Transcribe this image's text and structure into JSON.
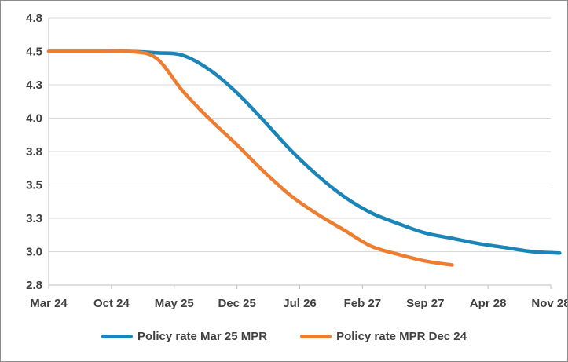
{
  "chart_data": {
    "type": "line",
    "title": "",
    "xlabel": "",
    "ylabel": "",
    "x_tick_labels": [
      "Mar 24",
      "Oct 24",
      "May 25",
      "Dec 25",
      "Jul 26",
      "Feb 27",
      "Sep 27",
      "Apr 28",
      "Nov 28"
    ],
    "y_tick_labels": [
      "2.8",
      "3.0",
      "3.3",
      "3.5",
      "3.8",
      "4.0",
      "4.3",
      "4.5",
      "4.8"
    ],
    "ylim": [
      2.75,
      4.75
    ],
    "grid": "horizontal",
    "legend_position": "bottom",
    "x_unit": "months since Mar 24",
    "series": [
      {
        "name": "Policy rate Mar 25 MPR",
        "color": "#1b85b8",
        "points": [
          [
            0,
            4.5
          ],
          [
            3,
            4.5
          ],
          [
            6,
            4.5
          ],
          [
            9,
            4.5
          ],
          [
            12,
            4.49
          ],
          [
            15,
            4.47
          ],
          [
            18,
            4.36
          ],
          [
            21,
            4.19
          ],
          [
            24,
            3.98
          ],
          [
            27,
            3.76
          ],
          [
            30,
            3.57
          ],
          [
            33,
            3.41
          ],
          [
            36,
            3.29
          ],
          [
            39,
            3.21
          ],
          [
            42,
            3.14
          ],
          [
            45,
            3.1
          ],
          [
            48,
            3.06
          ],
          [
            51,
            3.03
          ],
          [
            54,
            3.0
          ],
          [
            57,
            2.99
          ]
        ]
      },
      {
        "name": "Policy rate MPR Dec 24",
        "color": "#ed7d31",
        "points": [
          [
            0,
            4.5
          ],
          [
            3,
            4.5
          ],
          [
            6,
            4.5
          ],
          [
            9,
            4.5
          ],
          [
            12,
            4.45
          ],
          [
            15,
            4.2
          ],
          [
            18,
            3.99
          ],
          [
            21,
            3.8
          ],
          [
            24,
            3.6
          ],
          [
            27,
            3.42
          ],
          [
            30,
            3.28
          ],
          [
            33,
            3.16
          ],
          [
            36,
            3.04
          ],
          [
            39,
            2.98
          ],
          [
            42,
            2.93
          ],
          [
            45,
            2.9
          ]
        ]
      }
    ]
  }
}
